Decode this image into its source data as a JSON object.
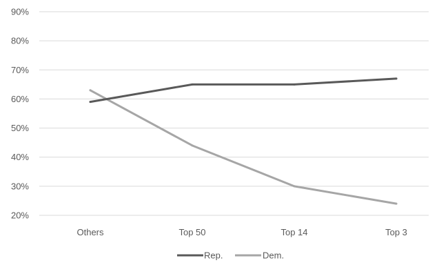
{
  "chart_data": {
    "type": "line",
    "title": "",
    "xlabel": "",
    "ylabel": "",
    "categories": [
      "Others",
      "Top 50",
      "Top 14",
      "Top 3"
    ],
    "y_ticks": [
      "20%",
      "30%",
      "40%",
      "50%",
      "60%",
      "70%",
      "80%",
      "90%"
    ],
    "ylim": [
      20,
      90
    ],
    "y_unit": "%",
    "grid": true,
    "legend_position": "bottom",
    "series": [
      {
        "name": "Rep.",
        "color": "#595959",
        "values": [
          59,
          65,
          65,
          67
        ]
      },
      {
        "name": "Dem.",
        "color": "#a6a6a6",
        "values": [
          63,
          44,
          30,
          24
        ]
      }
    ]
  }
}
